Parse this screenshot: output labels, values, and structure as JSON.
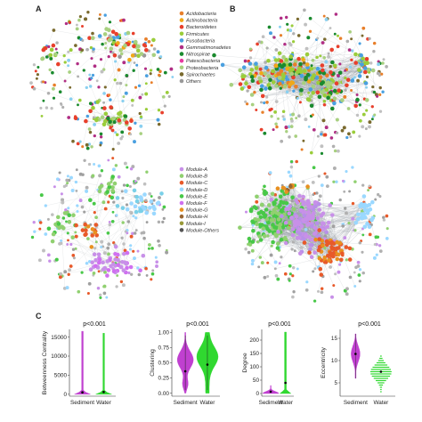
{
  "panels": {
    "a": "A",
    "b": "B",
    "c": "C"
  },
  "colors": {
    "phylum": [
      "#e87f2a",
      "#f0a818",
      "#e8402c",
      "#9acd3a",
      "#4aa0e0",
      "#b02e84",
      "#1a8a2e",
      "#e83aa0",
      "#a8d080",
      "#7a6a2e",
      "#999999"
    ],
    "module": [
      "#c890e8",
      "#90d070",
      "#e85a2a",
      "#9ad8ff",
      "#48c848",
      "#d070f0",
      "#e89020",
      "#996633",
      "#9a9a3a",
      "#555555"
    ],
    "sediment": "#c040d0",
    "water": "#30d830"
  },
  "legend_phylum": [
    "Acidobacteria",
    "Actinobacteria",
    "Bacteroidetes",
    "Firmicutes",
    "Fusobacteria",
    "Gemmatimonadetes",
    "Nitrospirae",
    "Patescibacteria",
    "Proteobacteria",
    "Spirochaetes",
    "Others"
  ],
  "legend_module": [
    "Module-A",
    "Module-B",
    "Module-C",
    "Module-D",
    "Module-E",
    "Module-F",
    "Module-G",
    "Module-H",
    "Module-I",
    "Module-Others"
  ],
  "chart_data": [
    {
      "type": "violin",
      "categories": [
        "Sediment",
        "Water"
      ],
      "ylabel": "Betweenness Centrality",
      "yticks": [
        0,
        5000,
        10000,
        15000
      ],
      "ylim": [
        -500,
        17000
      ],
      "pvalue": "p<0.001",
      "medians": [
        200,
        300
      ],
      "means": [
        500,
        600
      ],
      "max": [
        16500,
        16000
      ]
    },
    {
      "type": "violin",
      "categories": [
        "Sediment",
        "Water"
      ],
      "ylabel": "Clustering",
      "yticks": [
        0.0,
        0.25,
        0.5,
        0.75,
        1.0
      ],
      "ylim": [
        -0.05,
        1.05
      ],
      "pvalue": "p<0.001",
      "medians": [
        0.35,
        0.48
      ],
      "means": [
        0.36,
        0.47
      ]
    },
    {
      "type": "violin",
      "categories": [
        "Sediment",
        "Water"
      ],
      "ylabel": "Degree",
      "yticks": [
        0,
        50,
        100,
        150,
        200
      ],
      "ylim": [
        -10,
        240
      ],
      "pvalue": "p<0.001",
      "medians": [
        5,
        25
      ],
      "means": [
        7,
        40
      ],
      "max": [
        30,
        230
      ]
    },
    {
      "type": "violin",
      "categories": [
        "Sediment",
        "Water"
      ],
      "ylabel": "Eccentricity",
      "yticks": [
        5,
        10,
        15
      ],
      "ylim": [
        2,
        17
      ],
      "pvalue": "p<0.001",
      "medians": [
        12,
        8
      ],
      "means": [
        11.5,
        7.5
      ],
      "range": [
        [
          6,
          16
        ],
        [
          3,
          11
        ]
      ]
    }
  ]
}
